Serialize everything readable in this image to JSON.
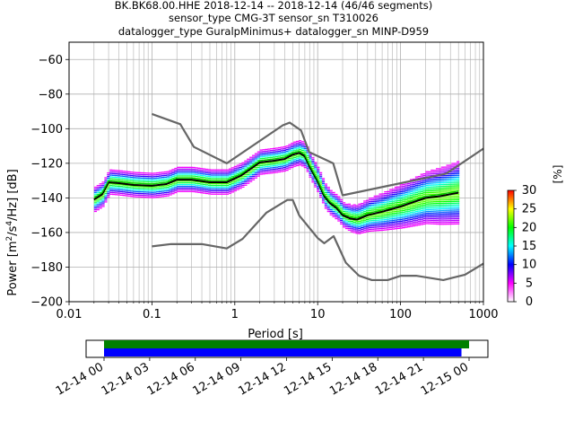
{
  "chart_data": [
    {
      "type": "heatmap",
      "title": [
        "BK.BK68.00.HHE   2018-12-14 -- 2018-12-14  (46/46 segments)",
        "sensor_type CMG-3T sensor_sn T310026",
        "datalogger_type GuralpMinimus+ datalogger_sn MINP-D959"
      ],
      "xlabel": "Period [s]",
      "ylabel": "Power [m²/s⁴/Hz] [dB]",
      "xscale": "log",
      "xlim": [
        0.01,
        1000
      ],
      "ylim": [
        -200,
        -50
      ],
      "xticks": [
        0.01,
        0.1,
        1,
        10,
        100,
        1000
      ],
      "xtick_labels": [
        "0.01",
        "0.1",
        "1",
        "10",
        "100",
        "1000"
      ],
      "yticks": [
        -60,
        -80,
        -100,
        -120,
        -140,
        -160,
        -180,
        -200
      ],
      "ytick_labels": [
        "−60",
        "−80",
        "−100",
        "−120",
        "−140",
        "−160",
        "−180",
        "−200"
      ],
      "grid": true,
      "colorbar": {
        "label": "[%]",
        "range": [
          0,
          30
        ],
        "ticks": [
          0,
          5,
          10,
          15,
          20,
          25,
          30
        ],
        "tick_labels": [
          "0",
          "5",
          "10",
          "15",
          "20",
          "25",
          "30"
        ],
        "colormap": [
          "#ffffff",
          "#ff00ff",
          "#0000ff",
          "#00ffff",
          "#00ff00",
          "#ffff00",
          "#ff0000"
        ]
      },
      "series": [
        {
          "role": "noise_model_high",
          "color": "#666666",
          "x": [
            0.1,
            0.22,
            0.32,
            0.8,
            3.8,
            4.6,
            6.3,
            7.9,
            15.4,
            20,
            354.8,
            1000
          ],
          "y": [
            -91.5,
            -97.4,
            -110.5,
            -120,
            -98,
            -96.5,
            -101,
            -113.5,
            -120,
            -138.5,
            -126,
            -111.5
          ]
        },
        {
          "role": "noise_model_low",
          "color": "#666666",
          "x": [
            0.1,
            0.17,
            0.4,
            0.8,
            1.24,
            2.4,
            4.3,
            5.0,
            6.0,
            10.0,
            12.0,
            15.6,
            21.9,
            31.6,
            45.0,
            70.0,
            101.0,
            154.0,
            328.0,
            600.0,
            1000.0
          ],
          "y": [
            -168,
            -166.7,
            -166.7,
            -169.2,
            -163.7,
            -148.6,
            -141.2,
            -141.2,
            -150.2,
            -163.2,
            -166.2,
            -162.1,
            -177.5,
            -185.0,
            -187.5,
            -187.5,
            -185.0,
            -185.0,
            -187.5,
            -184.4,
            -178.0
          ]
        },
        {
          "role": "mean",
          "color": "#000000",
          "x": [
            0.02,
            0.025,
            0.03,
            0.04,
            0.06,
            0.1,
            0.15,
            0.2,
            0.3,
            0.5,
            0.8,
            1.2,
            2.0,
            3.0,
            4.0,
            5.0,
            6.0,
            7.0,
            8.0,
            10.0,
            12.0,
            14.0,
            17.0,
            20.0,
            25.0,
            30.0,
            40.0,
            60.0,
            100.0,
            200.0,
            300.0,
            500.0
          ],
          "y": [
            -141,
            -138,
            -131,
            -131.5,
            -132.5,
            -133,
            -132,
            -129.5,
            -129.5,
            -131,
            -131,
            -127,
            -119.5,
            -118.5,
            -117.5,
            -115,
            -114,
            -116,
            -122,
            -130.5,
            -139,
            -143,
            -146,
            -150,
            -152,
            -152.5,
            -150,
            -148,
            -145,
            -140,
            -139,
            -137
          ]
        },
        {
          "role": "mode",
          "color": "#00cc00",
          "x": [
            0.02,
            0.025,
            0.03,
            0.04,
            0.06,
            0.1,
            0.15,
            0.2,
            0.3,
            0.5,
            0.8,
            1.2,
            2.0,
            3.0,
            4.0,
            5.0,
            6.0,
            7.0,
            8.0,
            10.0,
            12.0,
            14.0,
            17.0,
            20.0,
            25.0,
            30.0,
            40.0,
            60.0,
            100.0,
            200.0,
            300.0,
            500.0
          ],
          "y": [
            -140,
            -137,
            -130,
            -130.5,
            -131.5,
            -132,
            -131,
            -128.5,
            -128.5,
            -130,
            -130,
            -126,
            -118.5,
            -117.5,
            -116.5,
            -114,
            -113,
            -115,
            -121,
            -129.5,
            -138,
            -142,
            -145,
            -149,
            -151,
            -151.5,
            -149,
            -147,
            -144,
            -139,
            -138,
            -136
          ]
        }
      ]
    },
    {
      "type": "bar",
      "xtick_labels": [
        "12-14 00",
        "12-14 03",
        "12-14 06",
        "12-14 09",
        "12-14 12",
        "12-14 15",
        "12-14 18",
        "12-14 21",
        "12-15 00"
      ],
      "xlim_hours": [
        0,
        25
      ],
      "series": [
        {
          "role": "data_coverage",
          "color": "#008000",
          "start_hour": 0,
          "end_hour": 24
        },
        {
          "role": "psd_coverage",
          "color": "#0000ff",
          "start_hour": 0,
          "end_hour": 23.5
        }
      ]
    }
  ]
}
